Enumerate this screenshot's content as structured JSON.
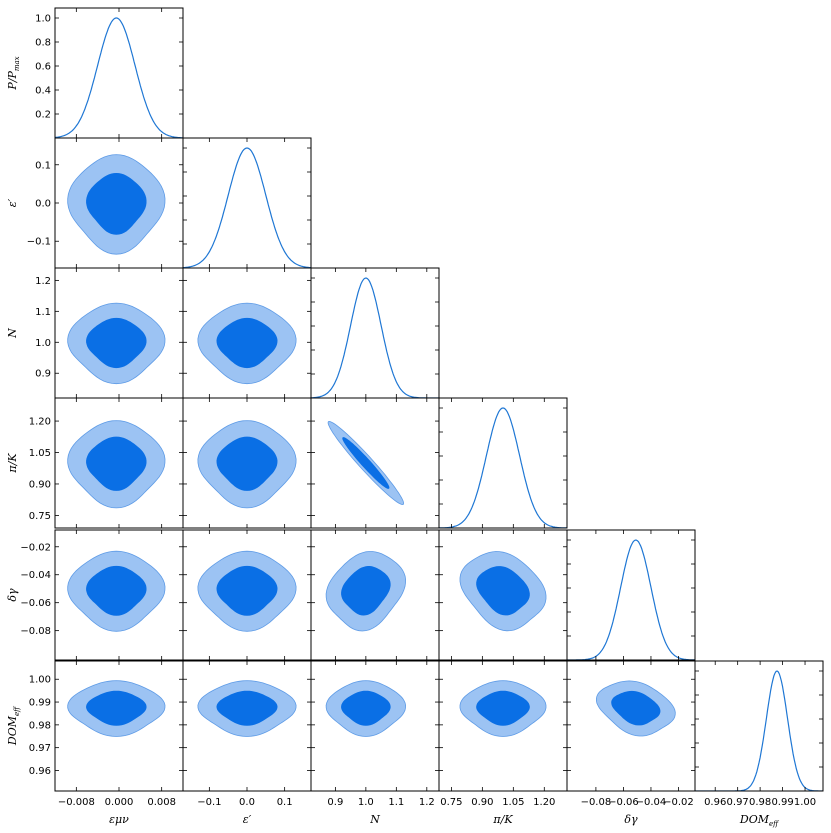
{
  "chart_data": {
    "type": "corner",
    "colors": {
      "curve": "#1f77d4",
      "contour_outer": "#9cc3f3",
      "contour_inner": "#0a6fe5"
    },
    "parameters": [
      {
        "label": "εμν",
        "sub": "",
        "range": [
          -0.012,
          0.012
        ],
        "ticks": [
          -0.008,
          0.0,
          0.008
        ],
        "tick_labels": [
          "−0.008",
          "0.000",
          "0.008"
        ],
        "mean": -0.0005,
        "sigma": 0.0035
      },
      {
        "label": "ε′",
        "sub": "",
        "range": [
          -0.17,
          0.17
        ],
        "ticks": [
          -0.1,
          0.0,
          0.1
        ],
        "tick_labels": [
          "−0.1",
          "0.0",
          "0.1"
        ],
        "mean": 0.0,
        "sigma": 0.05
      },
      {
        "label": "N",
        "sub": "",
        "range": [
          0.82,
          1.24
        ],
        "ticks": [
          0.9,
          1.0,
          1.1,
          1.2
        ],
        "tick_labels": [
          "0.9",
          "1.0",
          "1.1",
          "1.2"
        ],
        "mean": 1.0,
        "sigma": 0.05
      },
      {
        "label": "π/K",
        "sub": "",
        "range": [
          0.69,
          1.31
        ],
        "ticks": [
          0.75,
          0.9,
          1.05,
          1.2
        ],
        "tick_labels": [
          "0.75",
          "0.90",
          "1.05",
          "1.20"
        ],
        "mean": 1.0,
        "sigma": 0.08
      },
      {
        "label": "δγ",
        "sub": "",
        "range": [
          -0.101,
          -0.008
        ],
        "ticks": [
          -0.08,
          -0.06,
          -0.04,
          -0.02
        ],
        "tick_labels": [
          "−0.08",
          "−0.06",
          "−0.04",
          "−0.02"
        ],
        "mean": -0.051,
        "sigma": 0.011
      },
      {
        "label": "DOM",
        "sub": "eff",
        "range": [
          0.951,
          1.008
        ],
        "ticks": [
          0.96,
          0.97,
          0.98,
          0.99,
          1.0
        ],
        "tick_labels": [
          "0.96",
          "0.97",
          "0.98",
          "0.99",
          "1.00"
        ],
        "mean": 0.9875,
        "sigma": 0.0047
      }
    ],
    "diag_ylabel": "P/P",
    "diag_ylabel_sub": "max",
    "diag_yticks": [
      0.2,
      0.4,
      0.6,
      0.8,
      1.0
    ],
    "diag_ytick_labels": [
      "0.2",
      "0.4",
      "0.6",
      "0.8",
      "1.0"
    ],
    "correlations": [
      [
        0,
        1,
        0.0
      ],
      [
        0,
        2,
        0.0
      ],
      [
        0,
        3,
        0.0
      ],
      [
        0,
        4,
        0.0
      ],
      [
        0,
        5,
        0.0
      ],
      [
        1,
        2,
        0.0
      ],
      [
        1,
        3,
        0.0
      ],
      [
        1,
        4,
        0.0
      ],
      [
        1,
        5,
        0.0
      ],
      [
        2,
        3,
        -0.97
      ],
      [
        2,
        4,
        0.18
      ],
      [
        2,
        5,
        0.0
      ],
      [
        3,
        4,
        -0.22
      ],
      [
        3,
        5,
        0.0
      ],
      [
        4,
        5,
        -0.25
      ]
    ],
    "levels": {
      "inner_sigma": 1.52,
      "outer_sigma": 2.48
    }
  }
}
